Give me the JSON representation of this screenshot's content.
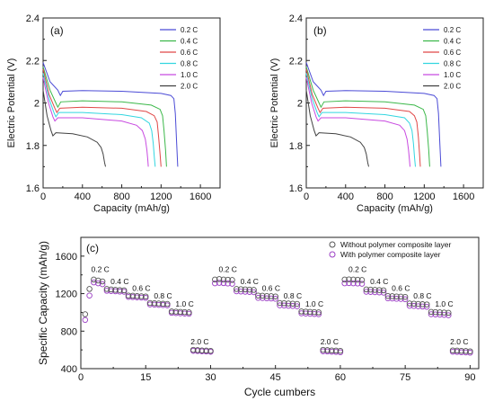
{
  "chart_data": [
    {
      "type": "line",
      "panel_label": "(a)",
      "xlabel": "Capacity (mAh/g)",
      "ylabel": "Electric Potential (V)",
      "xlim": [
        0,
        1800
      ],
      "ylim": [
        1.6,
        2.4
      ],
      "x_ticks": [
        "0",
        "400",
        "800",
        "1200",
        "1600"
      ],
      "y_ticks": [
        "1.6",
        "1.8",
        "2",
        "2.2",
        "2.4"
      ],
      "legend_position": "top-right",
      "series": [
        {
          "name": "0.2 C",
          "color": "#4b4bd6",
          "x": [
            0,
            70,
            150,
            175,
            200,
            400,
            800,
            1200,
            1300,
            1330,
            1345,
            1360,
            1370
          ],
          "y": [
            2.19,
            2.1,
            2.06,
            2.035,
            2.055,
            2.058,
            2.055,
            2.045,
            2.035,
            2.02,
            1.95,
            1.8,
            1.7
          ]
        },
        {
          "name": "0.4 C",
          "color": "#3cb84a",
          "x": [
            0,
            70,
            130,
            150,
            180,
            400,
            800,
            1100,
            1190,
            1215,
            1230,
            1245,
            1255
          ],
          "y": [
            2.17,
            2.06,
            2.0,
            1.98,
            2.005,
            2.01,
            2.005,
            1.99,
            1.97,
            1.94,
            1.87,
            1.78,
            1.7
          ]
        },
        {
          "name": "0.6 C",
          "color": "#e04848",
          "x": [
            0,
            60,
            120,
            140,
            170,
            400,
            800,
            1050,
            1130,
            1160,
            1175,
            1190,
            1200
          ],
          "y": [
            2.16,
            2.04,
            1.975,
            1.955,
            1.975,
            1.98,
            1.975,
            1.96,
            1.94,
            1.91,
            1.84,
            1.76,
            1.7
          ]
        },
        {
          "name": "0.8 C",
          "color": "#33d6e0",
          "x": [
            0,
            60,
            110,
            130,
            160,
            400,
            800,
            1000,
            1080,
            1105,
            1120,
            1132,
            1140
          ],
          "y": [
            2.14,
            2.02,
            1.955,
            1.935,
            1.955,
            1.955,
            1.945,
            1.93,
            1.905,
            1.87,
            1.81,
            1.74,
            1.7
          ]
        },
        {
          "name": "1.0 C",
          "color": "#c84ae0",
          "x": [
            0,
            55,
            100,
            120,
            150,
            400,
            800,
            950,
            1010,
            1040,
            1055,
            1065,
            1070
          ],
          "y": [
            2.12,
            2.0,
            1.935,
            1.915,
            1.93,
            1.93,
            1.915,
            1.895,
            1.87,
            1.83,
            1.78,
            1.73,
            1.7
          ]
        },
        {
          "name": "2.0 C",
          "color": "#404040",
          "x": [
            0,
            40,
            80,
            100,
            130,
            300,
            450,
            550,
            590,
            610,
            625,
            635
          ],
          "y": [
            2.06,
            1.94,
            1.87,
            1.845,
            1.86,
            1.855,
            1.84,
            1.815,
            1.79,
            1.76,
            1.72,
            1.7
          ]
        }
      ]
    },
    {
      "type": "line",
      "panel_label": "(b)",
      "xlabel": "Capacity (mAh/g)",
      "ylabel": "Electric Potential (V)",
      "xlim": [
        0,
        1800
      ],
      "ylim": [
        1.6,
        2.4
      ],
      "x_ticks": [
        "0",
        "400",
        "800",
        "1200",
        "1600"
      ],
      "y_ticks": [
        "1.6",
        "1.8",
        "2",
        "2.2",
        "2.4"
      ],
      "legend_position": "top-right",
      "series": [
        {
          "name": "0.2 C",
          "color": "#4b4bd6",
          "x": [
            0,
            70,
            150,
            175,
            200,
            400,
            800,
            1200,
            1300,
            1330,
            1345,
            1360,
            1370
          ],
          "y": [
            2.19,
            2.1,
            2.06,
            2.035,
            2.055,
            2.058,
            2.055,
            2.045,
            2.035,
            2.02,
            1.95,
            1.8,
            1.7
          ]
        },
        {
          "name": "0.4 C",
          "color": "#3cb84a",
          "x": [
            0,
            70,
            130,
            150,
            180,
            400,
            800,
            1100,
            1190,
            1215,
            1230,
            1245,
            1255
          ],
          "y": [
            2.17,
            2.06,
            2.0,
            1.98,
            2.005,
            2.01,
            2.005,
            1.99,
            1.97,
            1.94,
            1.87,
            1.78,
            1.7
          ]
        },
        {
          "name": "0.6 C",
          "color": "#e04848",
          "x": [
            0,
            60,
            120,
            140,
            170,
            400,
            800,
            1050,
            1100,
            1125,
            1140,
            1152,
            1160
          ],
          "y": [
            2.16,
            2.04,
            1.975,
            1.955,
            1.975,
            1.98,
            1.975,
            1.96,
            1.94,
            1.91,
            1.84,
            1.76,
            1.7
          ]
        },
        {
          "name": "0.8 C",
          "color": "#33d6e0",
          "x": [
            0,
            60,
            110,
            130,
            160,
            400,
            800,
            1000,
            1050,
            1075,
            1090,
            1102,
            1110
          ],
          "y": [
            2.14,
            2.02,
            1.955,
            1.935,
            1.955,
            1.955,
            1.945,
            1.93,
            1.905,
            1.87,
            1.81,
            1.74,
            1.7
          ]
        },
        {
          "name": "1.0 C",
          "color": "#c84ae0",
          "x": [
            0,
            55,
            100,
            120,
            150,
            400,
            800,
            950,
            1000,
            1025,
            1040,
            1050,
            1055
          ],
          "y": [
            2.12,
            2.0,
            1.935,
            1.915,
            1.93,
            1.93,
            1.915,
            1.895,
            1.87,
            1.83,
            1.78,
            1.73,
            1.7
          ]
        },
        {
          "name": "2.0 C",
          "color": "#404040",
          "x": [
            0,
            40,
            80,
            100,
            130,
            300,
            450,
            550,
            590,
            610,
            625,
            635
          ],
          "y": [
            2.06,
            1.94,
            1.87,
            1.845,
            1.86,
            1.855,
            1.84,
            1.815,
            1.79,
            1.76,
            1.72,
            1.7
          ]
        }
      ]
    },
    {
      "type": "scatter",
      "panel_label": "(c)",
      "xlabel": "Cycle cumbers",
      "ylabel": "Specific Capacity (mAh/g)",
      "xlim": [
        0,
        92
      ],
      "ylim": [
        400,
        1800
      ],
      "x_ticks": [
        "0",
        "15",
        "30",
        "45",
        "60",
        "75",
        "90"
      ],
      "y_ticks": [
        "400",
        "800",
        "1200",
        "1600"
      ],
      "legend_position": "top-right",
      "rate_labels": [
        {
          "text": "0.2 C",
          "x": 4.5,
          "y": 1430
        },
        {
          "text": "0.4 C",
          "x": 9,
          "y": 1300
        },
        {
          "text": "0.6 C",
          "x": 14,
          "y": 1230
        },
        {
          "text": "0.8 C",
          "x": 19,
          "y": 1150
        },
        {
          "text": "1.0 C",
          "x": 24,
          "y": 1060
        },
        {
          "text": "2.0 C",
          "x": 27.5,
          "y": 660
        },
        {
          "text": "0.2 C",
          "x": 34,
          "y": 1430
        },
        {
          "text": "0.4 C",
          "x": 39,
          "y": 1300
        },
        {
          "text": "0.6 C",
          "x": 44,
          "y": 1230
        },
        {
          "text": "0.8 C",
          "x": 49,
          "y": 1150
        },
        {
          "text": "1.0 C",
          "x": 54,
          "y": 1060
        },
        {
          "text": "2.0 C",
          "x": 57.5,
          "y": 660
        },
        {
          "text": "0.2 C",
          "x": 64,
          "y": 1430
        },
        {
          "text": "0.4 C",
          "x": 69,
          "y": 1300
        },
        {
          "text": "0.6 C",
          "x": 74,
          "y": 1230
        },
        {
          "text": "0.8 C",
          "x": 79,
          "y": 1150
        },
        {
          "text": "1.0 C",
          "x": 84,
          "y": 1060
        },
        {
          "text": "2.0 C",
          "x": 87.5,
          "y": 660
        }
      ],
      "series": [
        {
          "name": "Without polymer composite layer",
          "color": "#555555",
          "x": [
            1,
            2,
            3,
            4,
            5,
            6,
            7,
            8,
            9,
            10,
            11,
            12,
            13,
            14,
            15,
            16,
            17,
            18,
            19,
            20,
            21,
            22,
            23,
            24,
            25,
            26,
            27,
            28,
            29,
            30,
            31,
            32,
            33,
            34,
            35,
            36,
            37,
            38,
            39,
            40,
            41,
            42,
            43,
            44,
            45,
            46,
            47,
            48,
            49,
            50,
            51,
            52,
            53,
            54,
            55,
            56,
            57,
            58,
            59,
            60,
            61,
            62,
            63,
            64,
            65,
            66,
            67,
            68,
            69,
            70,
            71,
            72,
            73,
            74,
            75,
            76,
            77,
            78,
            79,
            80,
            81,
            82,
            83,
            84,
            85,
            86,
            87,
            88,
            89,
            90
          ],
          "y": [
            980,
            1250,
            1350,
            1340,
            1330,
            1250,
            1245,
            1240,
            1238,
            1235,
            1180,
            1178,
            1175,
            1172,
            1170,
            1100,
            1098,
            1095,
            1092,
            1090,
            1010,
            1008,
            1005,
            1003,
            1000,
            600,
            598,
            595,
            593,
            590,
            1350,
            1355,
            1350,
            1348,
            1345,
            1250,
            1248,
            1245,
            1243,
            1240,
            1180,
            1178,
            1175,
            1173,
            1170,
            1100,
            1098,
            1095,
            1093,
            1090,
            1010,
            1008,
            1005,
            1003,
            1000,
            600,
            598,
            595,
            593,
            590,
            1350,
            1352,
            1350,
            1348,
            1345,
            1245,
            1243,
            1240,
            1238,
            1235,
            1175,
            1173,
            1170,
            1168,
            1165,
            1095,
            1093,
            1090,
            1088,
            1085,
            1005,
            1003,
            1000,
            998,
            995,
            595,
            593,
            590,
            588,
            585
          ]
        },
        {
          "name": "With polymer composite layer",
          "color": "#9b3fc4",
          "x": [
            1,
            2,
            3,
            4,
            5,
            6,
            7,
            8,
            9,
            10,
            11,
            12,
            13,
            14,
            15,
            16,
            17,
            18,
            19,
            20,
            21,
            22,
            23,
            24,
            25,
            26,
            27,
            28,
            29,
            30,
            31,
            32,
            33,
            34,
            35,
            36,
            37,
            38,
            39,
            40,
            41,
            42,
            43,
            44,
            45,
            46,
            47,
            48,
            49,
            50,
            51,
            52,
            53,
            54,
            55,
            56,
            57,
            58,
            59,
            60,
            61,
            62,
            63,
            64,
            65,
            66,
            67,
            68,
            69,
            70,
            71,
            72,
            73,
            74,
            75,
            76,
            77,
            78,
            79,
            80,
            81,
            82,
            83,
            84,
            85,
            86,
            87,
            88,
            89,
            90
          ],
          "y": [
            920,
            1180,
            1320,
            1310,
            1300,
            1230,
            1228,
            1225,
            1222,
            1220,
            1165,
            1163,
            1160,
            1158,
            1155,
            1085,
            1083,
            1080,
            1078,
            1075,
            995,
            993,
            990,
            988,
            985,
            590,
            588,
            585,
            583,
            580,
            1310,
            1315,
            1312,
            1308,
            1305,
            1225,
            1223,
            1220,
            1218,
            1215,
            1155,
            1153,
            1150,
            1148,
            1145,
            1075,
            1073,
            1070,
            1068,
            1065,
            990,
            988,
            985,
            983,
            980,
            585,
            583,
            580,
            578,
            575,
            1310,
            1312,
            1310,
            1308,
            1305,
            1220,
            1218,
            1215,
            1213,
            1210,
            1150,
            1148,
            1145,
            1143,
            1140,
            1070,
            1068,
            1065,
            1063,
            1060,
            980,
            978,
            975,
            973,
            970,
            580,
            578,
            575,
            573,
            570
          ]
        }
      ]
    }
  ]
}
